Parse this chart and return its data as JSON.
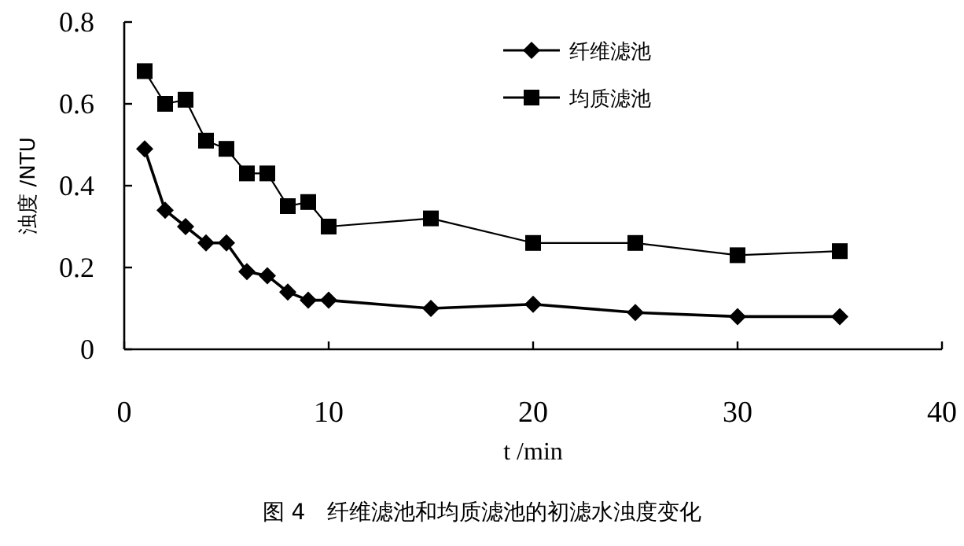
{
  "chart_data": {
    "type": "line",
    "title": "图 4　纤维滤池和均质滤池的初滤水浊度变化",
    "xlabel": "t /min",
    "ylabel": "浊度 /NTU",
    "x": [
      1,
      2,
      3,
      4,
      5,
      6,
      7,
      8,
      9,
      10,
      15,
      20,
      25,
      30,
      35
    ],
    "series": [
      {
        "name": "纤维滤池",
        "color": "#000000",
        "marker": "diamond",
        "values": [
          0.49,
          0.34,
          0.3,
          0.26,
          0.26,
          0.19,
          0.18,
          0.14,
          0.12,
          0.12,
          0.1,
          0.11,
          0.09,
          0.08,
          0.08
        ]
      },
      {
        "name": "均质滤池",
        "color": "#000000",
        "marker": "square",
        "values": [
          0.68,
          0.6,
          0.61,
          0.51,
          0.49,
          0.43,
          0.43,
          0.35,
          0.36,
          0.3,
          0.32,
          0.26,
          0.26,
          0.23,
          0.24
        ]
      }
    ],
    "xlim": [
      0,
      40
    ],
    "xticks": [
      0,
      10,
      20,
      30,
      40
    ],
    "ylim": [
      0,
      0.8
    ],
    "yticks": [
      0,
      0.2,
      0.4,
      0.6,
      0.8
    ],
    "grid": false,
    "legend": "top right",
    "line_style": "solid"
  }
}
